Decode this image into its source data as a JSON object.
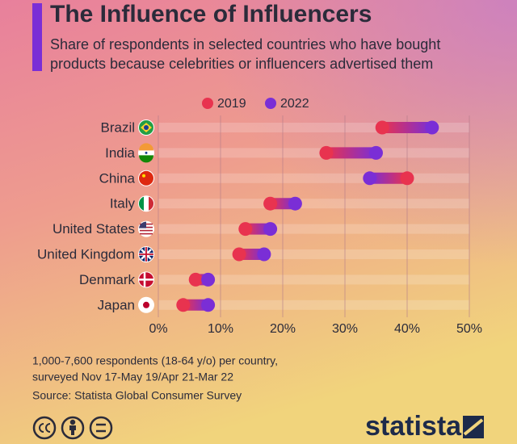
{
  "chart_data": {
    "type": "dumbbell",
    "title": "The Influence of Influencers",
    "subtitle": [
      "Share of respondents in selected countries who have bought",
      "products because celebrities or influencers advertised them"
    ],
    "categories": [
      "Brazil",
      "India",
      "China",
      "Italy",
      "United States",
      "United Kingdom",
      "Denmark",
      "Japan"
    ],
    "series": [
      {
        "name": "2019",
        "color": "#e8334f",
        "values": [
          36,
          27,
          40,
          18,
          14,
          13,
          6,
          4
        ]
      },
      {
        "name": "2022",
        "color": "#7a2ed6",
        "values": [
          44,
          35,
          34,
          22,
          18,
          17,
          8,
          8
        ]
      }
    ],
    "xlim": [
      0,
      50
    ],
    "xticks": [
      {
        "value": 0,
        "label": "0%"
      },
      {
        "value": 10,
        "label": "10%"
      },
      {
        "value": 20,
        "label": "20%"
      },
      {
        "value": 30,
        "label": "30%"
      },
      {
        "value": 40,
        "label": "40%"
      },
      {
        "value": 50,
        "label": "50%"
      }
    ],
    "grid": true,
    "notes": [
      "1,000-7,600 respondents (18-64 y/o) per country,",
      "surveyed Nov 17-May 19/Apr 21-Mar 22"
    ],
    "source": "Source: Statista Global Consumer Survey",
    "brand": "statista"
  }
}
